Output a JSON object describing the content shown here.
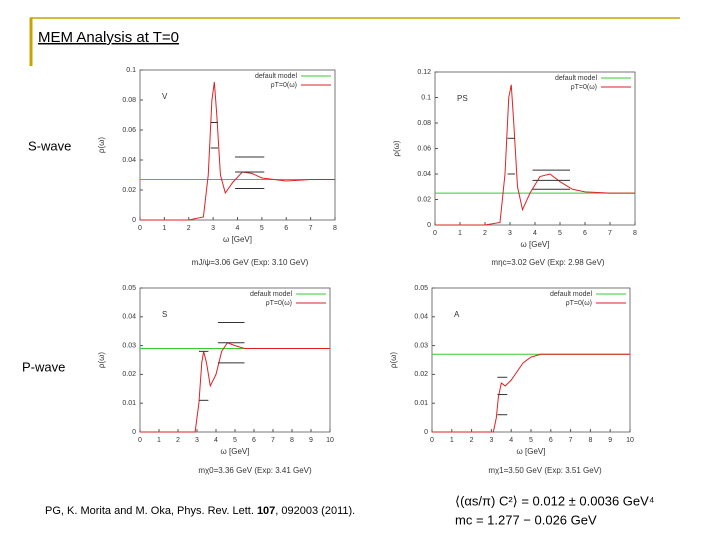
{
  "title": "MEM Analysis at T=0",
  "row_labels": [
    "S-wave",
    "P-wave"
  ],
  "citation": {
    "before": "PG, K. Morita and M. Oka, Phys. Rev. Lett. ",
    "volume": "107",
    "after": ", 092003 (2011)."
  },
  "results": [
    "⟨(αs/π) C²⟩ = 0.012 ± 0.0036 GeV⁴",
    "mc = 1.277 − 0.026 GeV"
  ],
  "chart_data": [
    {
      "type": "line",
      "panel_label": "V",
      "x_label": "ω [GeV]",
      "y_label": "ρ(ω)",
      "caption": "mJ/ψ=3.06 GeV (Exp: 3.10 GeV)",
      "x": [
        0,
        1,
        2,
        2.6,
        2.8,
        2.95,
        3.05,
        3.15,
        3.3,
        3.5,
        3.8,
        4.2,
        4.6,
        5,
        5.5,
        6,
        7,
        8
      ],
      "series": [
        {
          "name": "default model",
          "color": "#33cc33",
          "values": [
            0.027,
            0.027,
            0.027,
            0.027,
            0.027,
            0.027,
            0.027,
            0.027,
            0.027,
            0.027,
            0.027,
            0.027,
            0.027,
            0.027,
            0.027,
            0.027,
            0.027,
            0.027
          ]
        },
        {
          "name": "ρT=0(ω)",
          "color": "#dd2222",
          "values": [
            0,
            0,
            0,
            0.002,
            0.03,
            0.08,
            0.092,
            0.07,
            0.03,
            0.018,
            0.025,
            0.032,
            0.031,
            0.028,
            0.027,
            0.026,
            0.027,
            0.027
          ]
        }
      ],
      "bars": [
        {
          "x": [
            2.9,
            3.2
          ],
          "y": 0.065
        },
        {
          "x": [
            2.9,
            3.2
          ],
          "y": 0.048
        },
        {
          "x": [
            3.9,
            5.1
          ],
          "y": 0.042
        },
        {
          "x": [
            3.9,
            5.1
          ],
          "y": 0.032
        },
        {
          "x": [
            3.9,
            5.1
          ],
          "y": 0.021
        }
      ],
      "xlim": [
        0,
        8
      ],
      "xticks": [
        0,
        1,
        2,
        3,
        4,
        5,
        6,
        7,
        8
      ],
      "ylim": [
        0,
        0.1
      ],
      "yticks": [
        0,
        0.02,
        0.04,
        0.06,
        0.08,
        0.1
      ]
    },
    {
      "type": "line",
      "panel_label": "PS",
      "x_label": "ω [GeV]",
      "y_label": "ρ(ω)",
      "caption": "mηc=3.02 GeV (Exp: 2.98 GeV)",
      "x": [
        0,
        1,
        2,
        2.6,
        2.8,
        2.95,
        3.05,
        3.15,
        3.3,
        3.5,
        3.8,
        4.2,
        4.6,
        5,
        5.5,
        6,
        7,
        8
      ],
      "series": [
        {
          "name": "default model",
          "color": "#33cc33",
          "values": [
            0.025,
            0.025,
            0.025,
            0.025,
            0.025,
            0.025,
            0.025,
            0.025,
            0.025,
            0.025,
            0.025,
            0.025,
            0.025,
            0.025,
            0.025,
            0.025,
            0.025,
            0.025
          ]
        },
        {
          "name": "ρT=0(ω)",
          "color": "#dd2222",
          "values": [
            0,
            0,
            0,
            0.002,
            0.04,
            0.1,
            0.11,
            0.08,
            0.03,
            0.012,
            0.025,
            0.038,
            0.04,
            0.034,
            0.028,
            0.026,
            0.025,
            0.025
          ]
        }
      ],
      "bars": [
        {
          "x": [
            2.9,
            3.2
          ],
          "y": 0.068
        },
        {
          "x": [
            2.9,
            3.2
          ],
          "y": 0.04
        },
        {
          "x": [
            3.9,
            5.4
          ],
          "y": 0.043
        },
        {
          "x": [
            3.9,
            5.4
          ],
          "y": 0.035
        },
        {
          "x": [
            3.9,
            5.4
          ],
          "y": 0.028
        }
      ],
      "xlim": [
        0,
        8
      ],
      "xticks": [
        0,
        1,
        2,
        3,
        4,
        5,
        6,
        7,
        8
      ],
      "ylim": [
        0,
        0.12
      ],
      "yticks": [
        0,
        0.02,
        0.04,
        0.06,
        0.08,
        0.1,
        0.12
      ]
    },
    {
      "type": "line",
      "panel_label": "S",
      "x_label": "ω [GeV]",
      "y_label": "ρ(ω)",
      "caption": "mχ0=3.36 GeV (Exp: 3.41 GeV)",
      "x": [
        0,
        1,
        2,
        2.9,
        3.1,
        3.25,
        3.35,
        3.5,
        3.7,
        4,
        4.3,
        4.6,
        5,
        5.5,
        6,
        7,
        8,
        10
      ],
      "series": [
        {
          "name": "default model",
          "color": "#33cc33",
          "values": [
            0.029,
            0.029,
            0.029,
            0.029,
            0.029,
            0.029,
            0.029,
            0.029,
            0.029,
            0.029,
            0.029,
            0.029,
            0.029,
            0.029,
            0.029,
            0.029,
            0.029,
            0.029
          ]
        },
        {
          "name": "ρT=0(ω)",
          "color": "#dd2222",
          "values": [
            0,
            0,
            0,
            0,
            0.01,
            0.024,
            0.028,
            0.024,
            0.016,
            0.02,
            0.028,
            0.031,
            0.03,
            0.029,
            0.029,
            0.029,
            0.029,
            0.029
          ]
        }
      ],
      "bars": [
        {
          "x": [
            3.1,
            3.6
          ],
          "y": 0.028
        },
        {
          "x": [
            3.1,
            3.6
          ],
          "y": 0.011
        },
        {
          "x": [
            4.1,
            5.5
          ],
          "y": 0.038
        },
        {
          "x": [
            4.1,
            5.5
          ],
          "y": 0.031
        },
        {
          "x": [
            4.1,
            5.5
          ],
          "y": 0.024
        }
      ],
      "xlim": [
        0,
        10
      ],
      "xticks": [
        0,
        1,
        2,
        3,
        4,
        5,
        6,
        7,
        8,
        9,
        10
      ],
      "ylim": [
        0,
        0.05
      ],
      "yticks": [
        0,
        0.01,
        0.02,
        0.03,
        0.04,
        0.05
      ]
    },
    {
      "type": "line",
      "panel_label": "A",
      "x_label": "ω [GeV]",
      "y_label": "ρ(ω)",
      "caption": "mχ1=3.50 GeV (Exp: 3.51 GeV)",
      "x": [
        0,
        1,
        2,
        2.9,
        3.1,
        3.25,
        3.35,
        3.5,
        3.7,
        4,
        4.3,
        4.6,
        5,
        5.5,
        6,
        7,
        8,
        10
      ],
      "series": [
        {
          "name": "default model",
          "color": "#33cc33",
          "values": [
            0.027,
            0.027,
            0.027,
            0.027,
            0.027,
            0.027,
            0.027,
            0.027,
            0.027,
            0.027,
            0.027,
            0.027,
            0.027,
            0.027,
            0.027,
            0.027,
            0.027,
            0.027
          ]
        },
        {
          "name": "ρT=0(ω)",
          "color": "#dd2222",
          "values": [
            0,
            0,
            0,
            0,
            0,
            0.005,
            0.012,
            0.017,
            0.016,
            0.018,
            0.021,
            0.024,
            0.026,
            0.027,
            0.027,
            0.027,
            0.027,
            0.027
          ]
        }
      ],
      "bars": [
        {
          "x": [
            3.3,
            3.8
          ],
          "y": 0.019
        },
        {
          "x": [
            3.3,
            3.8
          ],
          "y": 0.013
        },
        {
          "x": [
            3.3,
            3.8
          ],
          "y": 0.006
        }
      ],
      "xlim": [
        0,
        10
      ],
      "xticks": [
        0,
        1,
        2,
        3,
        4,
        5,
        6,
        7,
        8,
        9,
        10
      ],
      "ylim": [
        0,
        0.05
      ],
      "yticks": [
        0,
        0.01,
        0.02,
        0.03,
        0.04,
        0.05
      ]
    }
  ]
}
